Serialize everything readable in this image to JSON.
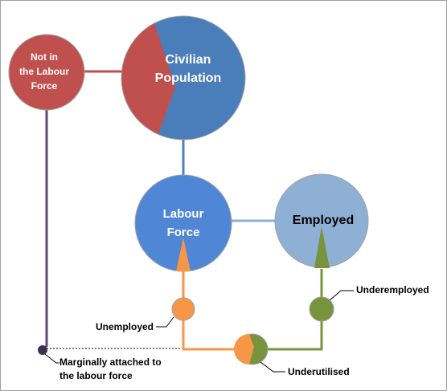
{
  "nodes": [
    {
      "lines": [
        "Not in",
        "the Labour",
        "Force"
      ]
    },
    {
      "lines": [
        "Civilian",
        "Population"
      ]
    },
    {
      "lines": [
        "Labour",
        "Force"
      ]
    },
    {
      "lines": [
        "Employed"
      ]
    },
    {
      "lines": [
        "Underemployed"
      ]
    },
    {
      "lines": [
        "Unemployed"
      ]
    },
    {
      "lines": [
        "Underutilised"
      ]
    },
    {
      "lines": [
        "Marginally attached to",
        "the labour force"
      ]
    }
  ]
}
